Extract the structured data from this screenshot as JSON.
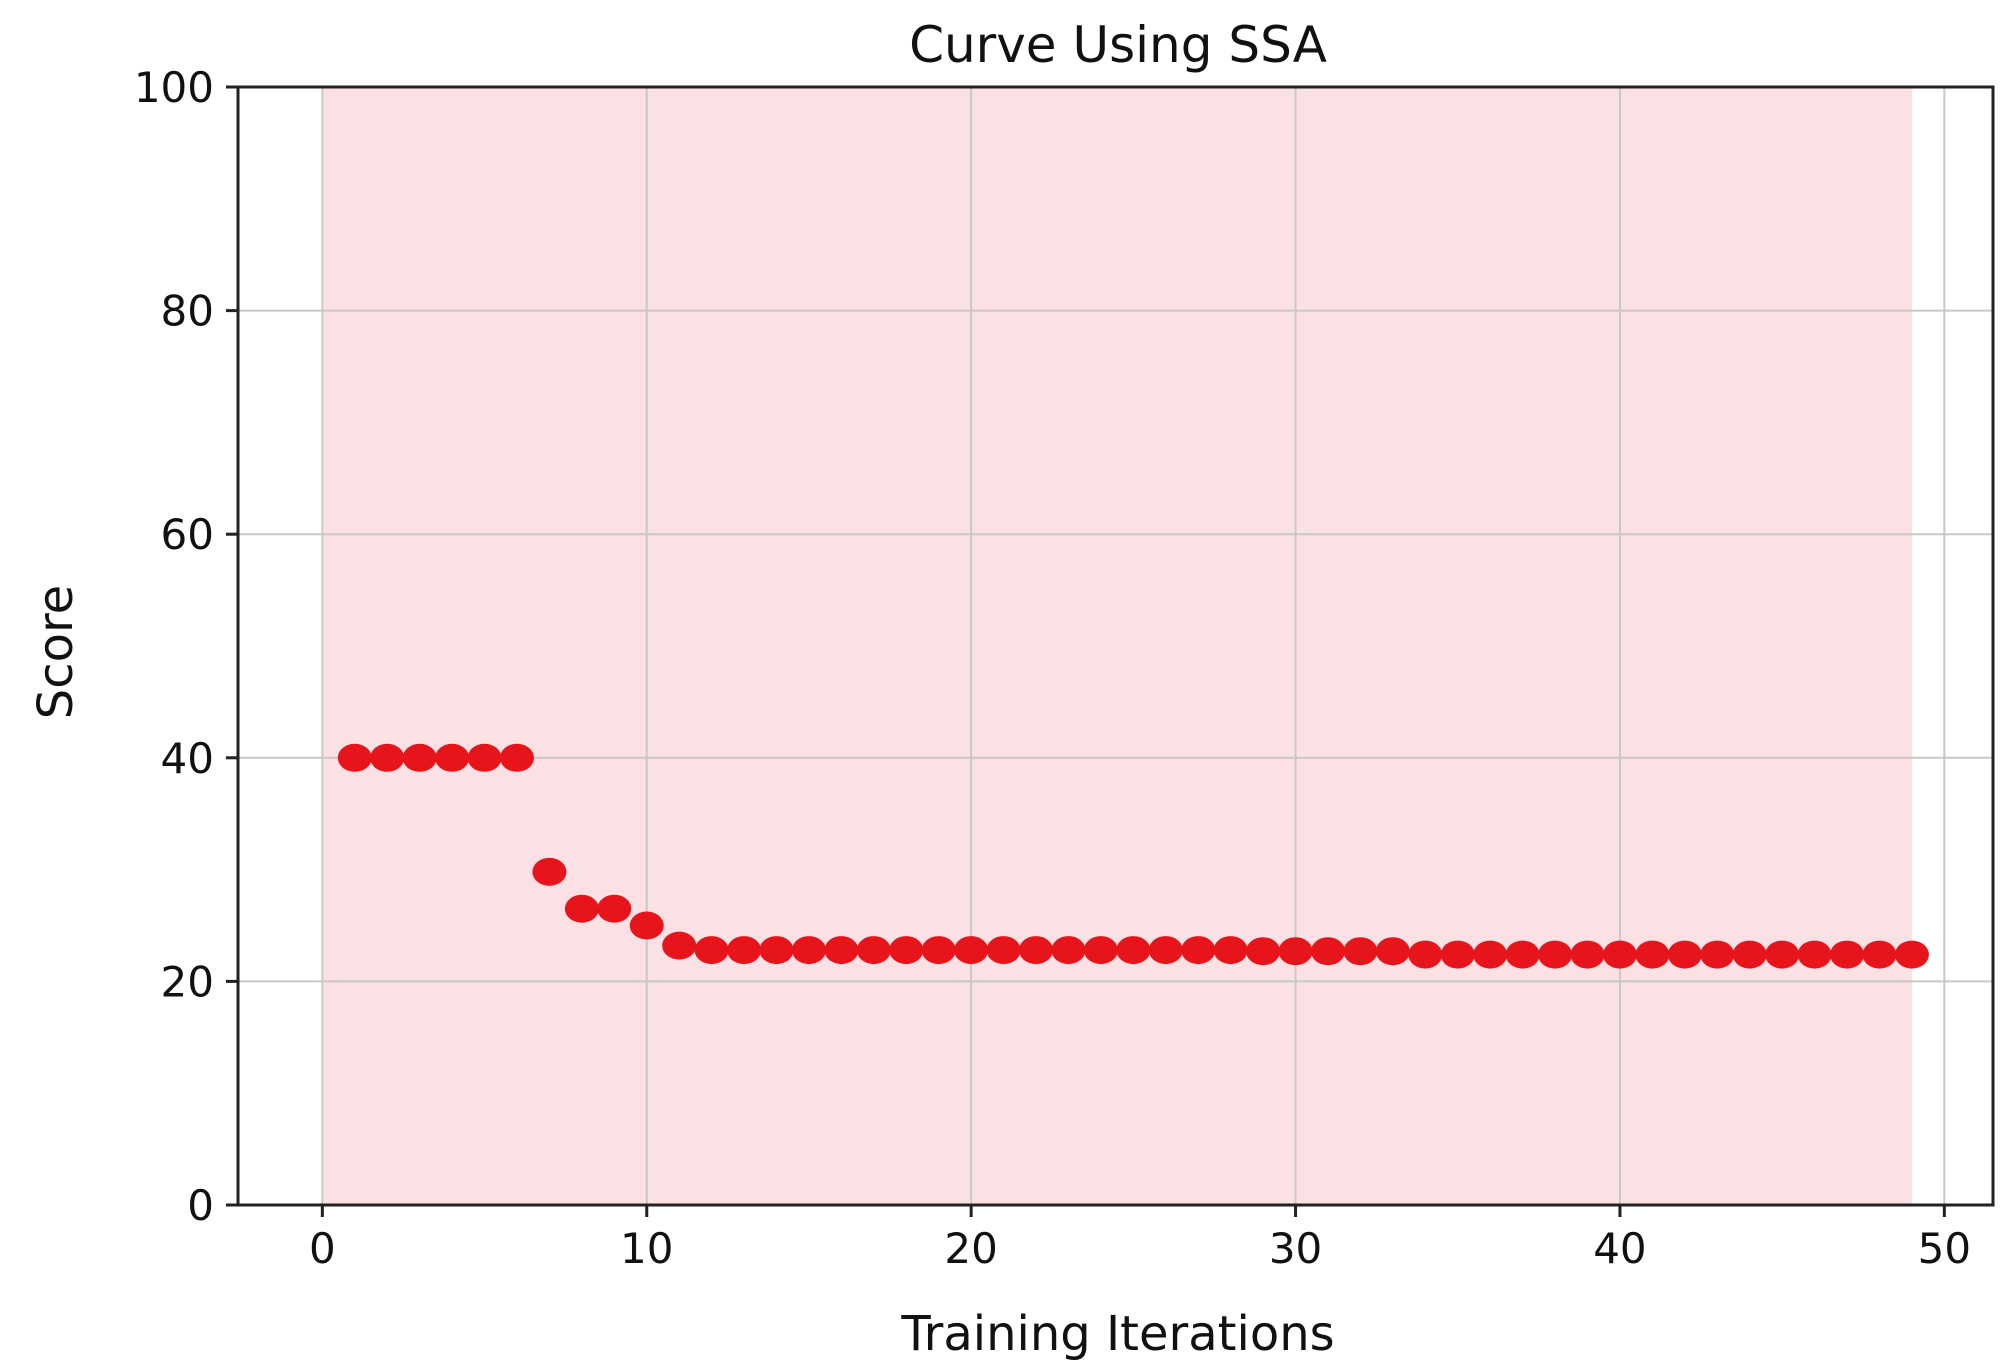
{
  "chart_data": {
    "type": "scatter",
    "title": "Curve Using SSA",
    "xlabel": "Training Iterations",
    "ylabel": "Score",
    "xlim": [
      -2.6,
      51.5
    ],
    "ylim": [
      0,
      100
    ],
    "xticks": [
      0,
      10,
      20,
      30,
      40,
      50
    ],
    "yticks": [
      0,
      20,
      40,
      60,
      80,
      100
    ],
    "grid": true,
    "shaded_x_range": [
      0,
      49
    ],
    "colors": {
      "points": "#e8141c",
      "shade": "#fbe1e3",
      "grid": "#c8c8c8",
      "axis": "#222222"
    },
    "series": [
      {
        "x": [
          1,
          2,
          3,
          4,
          5,
          6,
          7,
          8,
          9,
          10,
          11,
          12,
          13,
          14,
          15,
          16,
          17,
          18,
          19,
          20,
          21,
          22,
          23,
          24,
          25,
          26,
          27,
          28,
          29,
          30,
          31,
          32,
          33,
          34,
          35,
          36,
          37,
          38,
          39,
          40,
          41,
          42,
          43,
          44,
          45,
          46,
          47,
          48,
          49
        ],
        "y": [
          40,
          40,
          40,
          40,
          40,
          40,
          29.8,
          26.5,
          26.5,
          25.0,
          23.2,
          22.8,
          22.8,
          22.8,
          22.8,
          22.8,
          22.8,
          22.8,
          22.8,
          22.8,
          22.8,
          22.8,
          22.8,
          22.8,
          22.8,
          22.8,
          22.8,
          22.8,
          22.7,
          22.7,
          22.7,
          22.7,
          22.7,
          22.4,
          22.4,
          22.4,
          22.4,
          22.4,
          22.4,
          22.4,
          22.4,
          22.4,
          22.4,
          22.4,
          22.4,
          22.4,
          22.4,
          22.4,
          22.4
        ]
      }
    ]
  }
}
